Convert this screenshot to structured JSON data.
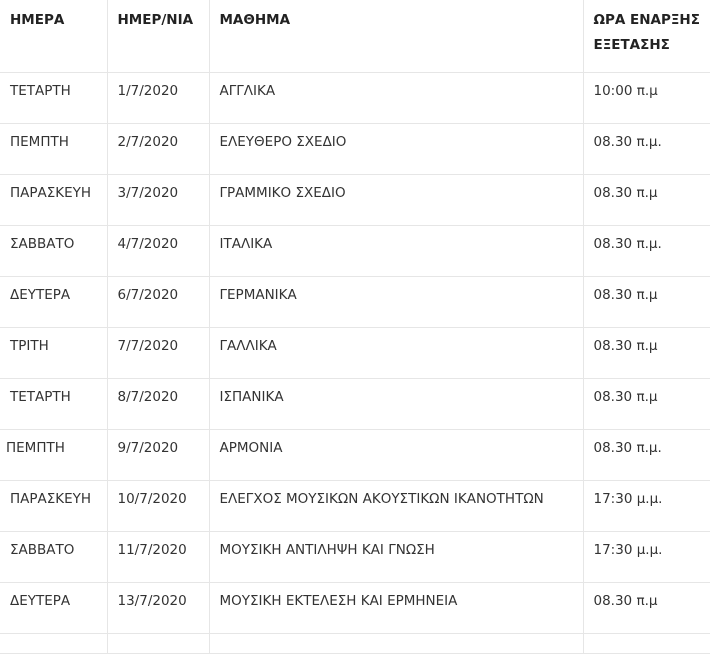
{
  "headers": [
    "ΗΜΕΡΑ",
    "ΗΜΕΡ/ΝΙΑ",
    "ΜΑΘΗΜΑ",
    "ΩΡΑ ΕΝΑΡΞΗΣ ΕΞΕΤΑΣΗΣ"
  ],
  "rows": [
    [
      "ΤΕΤΑΡΤΗ",
      "1/7/2020",
      "ΑΓΓΛΙΚΑ",
      "10:00 π.μ"
    ],
    [
      "ΠΕΜΠΤΗ",
      "2/7/2020",
      "ΕΛΕΥΘΕΡΟ ΣΧΕΔΙΟ",
      "08.30 π.μ."
    ],
    [
      "ΠΑΡΑΣΚΕΥΗ",
      "3/7/2020",
      "ΓΡΑΜΜΙΚΟ ΣΧΕΔΙΟ",
      "08.30 π.μ"
    ],
    [
      "ΣΑΒΒΑΤΟ",
      "4/7/2020",
      "ΙΤΑΛΙΚΑ",
      "08.30 π.μ."
    ],
    [
      "ΔΕΥΤΕΡΑ",
      "6/7/2020",
      "ΓΕΡΜΑΝΙΚΑ",
      "08.30 π.μ"
    ],
    [
      "ΤΡΙΤΗ",
      "7/7/2020",
      "ΓΑΛΛΙΚΑ",
      "08.30 π.μ"
    ],
    [
      "ΤΕΤΑΡΤΗ",
      "8/7/2020",
      "ΙΣΠΑΝΙΚΑ",
      "08.30 π.μ"
    ],
    [
      "ΠΕΜΠΤΗ",
      "9/7/2020",
      "ΑΡΜΟΝΙΑ",
      "08.30 π.μ."
    ],
    [
      "ΠΑΡΑΣΚΕΥΗ",
      "10/7/2020",
      "ΕΛΕΓΧΟΣ ΜΟΥΣΙΚΩΝ ΑΚΟΥΣΤΙΚΩΝ ΙΚΑΝΟΤΗΤΩΝ",
      "17:30 μ.μ."
    ],
    [
      "ΣΑΒΒΑΤΟ",
      "11/7/2020",
      "ΜΟΥΣΙΚΗ ΑΝΤΙΛΗΨΗ ΚΑΙ ΓΝΩΣΗ",
      "17:30 μ.μ."
    ],
    [
      "ΔΕΥΤΕΡΑ",
      "13/7/2020",
      "ΜΟΥΣΙΚΗ ΕΚΤΕΛΕΣΗ ΚΑΙ ΕΡΜΗΝΕΙΑ",
      "08.30 π.μ"
    ]
  ]
}
